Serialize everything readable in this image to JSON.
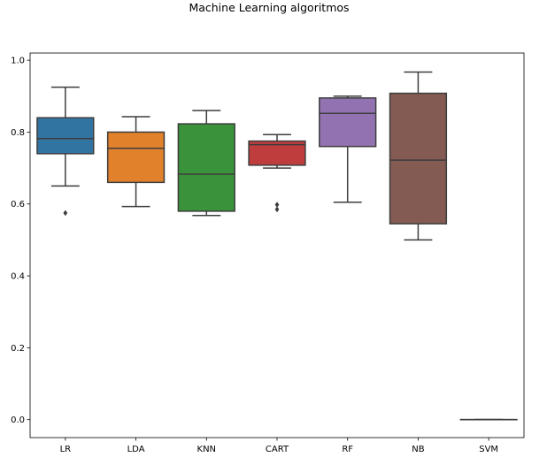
{
  "chart_data": {
    "type": "box",
    "title": "Machine Learning algoritmos",
    "xlabel": "",
    "ylabel": "",
    "ylim": [
      -0.05,
      1.02
    ],
    "yticks": [
      "0.0",
      "0.2",
      "0.4",
      "0.6",
      "0.8",
      "1.0"
    ],
    "grid": false,
    "categories": [
      "LR",
      "LDA",
      "KNN",
      "CART",
      "RF",
      "NB",
      "SVM"
    ],
    "boxes": [
      {
        "name": "LR",
        "whisker_low": 0.65,
        "q1": 0.74,
        "median": 0.782,
        "q3": 0.84,
        "whisker_high": 0.925,
        "outliers": [
          0.575
        ],
        "color": "#3274a1"
      },
      {
        "name": "LDA",
        "whisker_low": 0.593,
        "q1": 0.66,
        "median": 0.755,
        "q3": 0.8,
        "whisker_high": 0.843,
        "outliers": [],
        "color": "#e1812c"
      },
      {
        "name": "KNN",
        "whisker_low": 0.568,
        "q1": 0.58,
        "median": 0.683,
        "q3": 0.823,
        "whisker_high": 0.86,
        "outliers": [],
        "color": "#3a923a"
      },
      {
        "name": "CART",
        "whisker_low": 0.7,
        "q1": 0.708,
        "median": 0.765,
        "q3": 0.775,
        "whisker_high": 0.793,
        "outliers": [
          0.598,
          0.585
        ],
        "color": "#c03d3e"
      },
      {
        "name": "RF",
        "whisker_low": 0.605,
        "q1": 0.76,
        "median": 0.852,
        "q3": 0.895,
        "whisker_high": 0.9,
        "outliers": [],
        "color": "#9372b2"
      },
      {
        "name": "NB",
        "whisker_low": 0.5,
        "q1": 0.545,
        "median": 0.722,
        "q3": 0.908,
        "whisker_high": 0.967,
        "outliers": [],
        "color": "#845b53"
      },
      {
        "name": "SVM",
        "whisker_low": 0.0,
        "q1": 0.0,
        "median": 0.0,
        "q3": 0.0,
        "whisker_high": 0.0,
        "outliers": [],
        "color": "#d684bd"
      }
    ]
  }
}
